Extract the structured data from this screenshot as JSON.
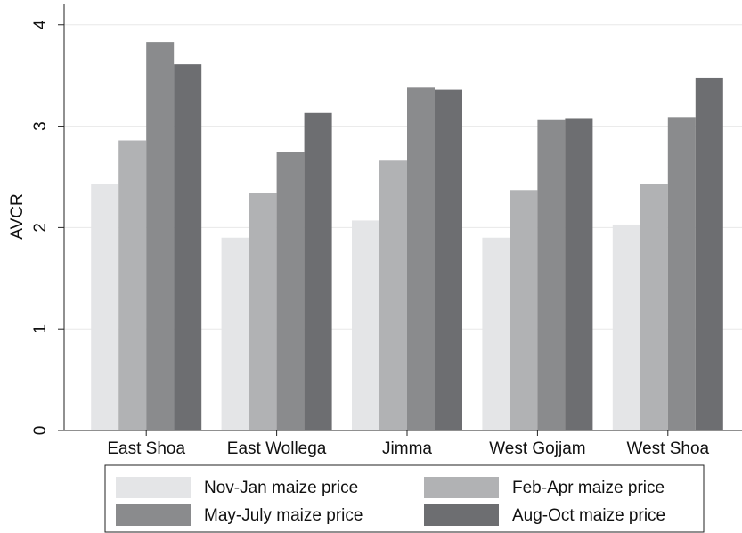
{
  "chart_data": {
    "type": "bar",
    "y_label": "AVCR",
    "categories": [
      "East Shoa",
      "East Wollega",
      "Jimma",
      "West Gojjam",
      "West Shoa"
    ],
    "series": [
      {
        "name": "Nov-Jan maize price",
        "color": "#e4e5e7",
        "values": [
          2.43,
          1.9,
          2.07,
          1.9,
          2.03
        ]
      },
      {
        "name": "Feb-Apr maize price",
        "color": "#b1b2b4",
        "values": [
          2.86,
          2.34,
          2.66,
          2.37,
          2.43
        ]
      },
      {
        "name": "May-July maize price",
        "color": "#8a8b8d",
        "values": [
          3.83,
          2.75,
          3.38,
          3.06,
          3.09
        ]
      },
      {
        "name": "Aug-Oct maize price",
        "color": "#6d6e71",
        "values": [
          3.61,
          3.13,
          3.36,
          3.08,
          3.48
        ]
      }
    ],
    "ylim": [
      0,
      4.2
    ],
    "yticks": [
      0,
      1,
      2,
      3,
      4
    ],
    "grid": true
  }
}
